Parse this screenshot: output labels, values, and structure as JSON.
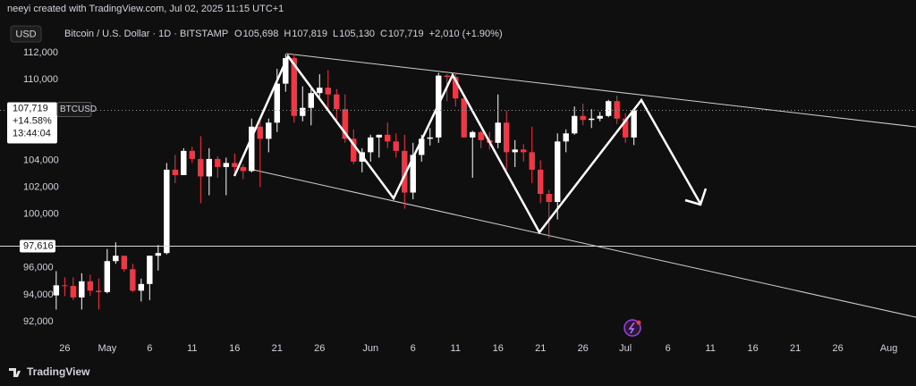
{
  "header": {
    "credit": "neeyi created with TradingView.com, Jul 02, 2025 11:15 UTC+1",
    "currency_button": "USD",
    "footer_brand": "TradingView"
  },
  "chart_data": {
    "type": "candlestick",
    "title": "Bitcoin / U.S. Dollar · 1D · BITSTAMP",
    "ohlc_legend": [
      {
        "key": "O",
        "value": 105698,
        "label": "105,698"
      },
      {
        "key": "H",
        "value": 107819,
        "label": "107,819"
      },
      {
        "key": "L",
        "value": 105130,
        "label": "105,130"
      },
      {
        "key": "C",
        "value": 107719,
        "label": "107,719"
      }
    ],
    "change_label": "+2,010 (+1.90%)",
    "up_color": "#ffffff",
    "down_color": "#f23645",
    "x": [
      115,
      116,
      117,
      118,
      119,
      120,
      121,
      122,
      123,
      124,
      125,
      126,
      127,
      128,
      129,
      130,
      131,
      132,
      133,
      134,
      135,
      136,
      137,
      138,
      139,
      140,
      141,
      142,
      143,
      144,
      145,
      146,
      147,
      148,
      149,
      150,
      151,
      152,
      153,
      154,
      155,
      156,
      157,
      158,
      159,
      160,
      161,
      162,
      163,
      164,
      165,
      166,
      167,
      168,
      169,
      170,
      171,
      172,
      173,
      174,
      175,
      176,
      177,
      178,
      179,
      180,
      181,
      182,
      183
    ],
    "open": [
      93950,
      94700,
      94650,
      93800,
      95000,
      94300,
      94200,
      96500,
      96900,
      95900,
      94300,
      94800,
      96900,
      97100,
      103300,
      102900,
      104700,
      104100,
      102800,
      104100,
      103500,
      103800,
      103500,
      103200,
      106500,
      105600,
      106800,
      109700,
      111600,
      107300,
      107900,
      109000,
      109400,
      108900,
      107800,
      105600,
      103900,
      104600,
      105700,
      105900,
      105400,
      104700,
      101600,
      104400,
      105600,
      105700,
      110300,
      110200,
      108600,
      105700,
      106100,
      105500,
      105300,
      106800,
      104600,
      104800,
      104600,
      103300,
      101500,
      100900,
      105400,
      106000,
      107300,
      107000,
      107100,
      107300,
      108400,
      107100,
      105698
    ],
    "high": [
      95750,
      95300,
      95300,
      95600,
      95500,
      95200,
      97400,
      97900,
      96900,
      96300,
      95200,
      96900,
      97700,
      103800,
      104400,
      104900,
      105000,
      105800,
      104900,
      104300,
      104200,
      104500,
      103700,
      107100,
      107000,
      107100,
      110800,
      111900,
      111900,
      109500,
      109300,
      110400,
      110700,
      109300,
      108900,
      106300,
      104900,
      105900,
      105900,
      106800,
      106000,
      105900,
      105300,
      105900,
      106400,
      110500,
      110400,
      110400,
      108800,
      106200,
      106200,
      106100,
      108900,
      107700,
      105500,
      105200,
      106500,
      104000,
      101800,
      106000,
      106300,
      108000,
      108200,
      107800,
      107600,
      108500,
      108800,
      107500,
      107819
    ],
    "low": [
      92900,
      93900,
      93600,
      92900,
      93900,
      92900,
      94100,
      96300,
      95700,
      94200,
      93500,
      93600,
      95800,
      97000,
      102300,
      102900,
      103800,
      100800,
      101400,
      102700,
      101400,
      103100,
      102600,
      103100,
      102000,
      104600,
      106100,
      109100,
      106800,
      106900,
      106600,
      108600,
      107600,
      106800,
      105300,
      103700,
      103100,
      103900,
      104200,
      104900,
      104200,
      100400,
      101100,
      103900,
      105100,
      105300,
      108400,
      108000,
      105700,
      102700,
      104900,
      104800,
      104900,
      103300,
      103500,
      103900,
      102300,
      100800,
      98200,
      99600,
      104600,
      105900,
      106600,
      106400,
      106900,
      107200,
      106700,
      105300,
      105130
    ],
    "close": [
      94700,
      94650,
      93800,
      95000,
      94300,
      94200,
      96500,
      96900,
      95900,
      94300,
      94800,
      96900,
      97100,
      103300,
      102900,
      104700,
      104100,
      102800,
      104100,
      103500,
      103800,
      103500,
      103200,
      106500,
      105600,
      106800,
      109700,
      111600,
      107300,
      107900,
      109000,
      109400,
      108900,
      107800,
      105600,
      103900,
      104600,
      105700,
      105900,
      105400,
      104700,
      101600,
      104400,
      105600,
      105700,
      110300,
      110200,
      108600,
      105700,
      106100,
      105500,
      105300,
      106800,
      104600,
      104800,
      104600,
      103300,
      101500,
      100900,
      105400,
      106000,
      107300,
      107000,
      107100,
      107300,
      108400,
      107100,
      105700,
      107719
    ],
    "xlim": [
      114.7,
      216.2
    ],
    "xticks": [
      {
        "value": 116,
        "label": "26"
      },
      {
        "value": 121,
        "label": "May"
      },
      {
        "value": 126,
        "label": "6"
      },
      {
        "value": 131,
        "label": "11"
      },
      {
        "value": 136,
        "label": "16"
      },
      {
        "value": 141,
        "label": "21"
      },
      {
        "value": 146,
        "label": "26"
      },
      {
        "value": 152,
        "label": "Jun"
      },
      {
        "value": 157,
        "label": "6"
      },
      {
        "value": 162,
        "label": "11"
      },
      {
        "value": 167,
        "label": "16"
      },
      {
        "value": 172,
        "label": "21"
      },
      {
        "value": 177,
        "label": "26"
      },
      {
        "value": 182,
        "label": "Jul"
      },
      {
        "value": 187,
        "label": "6"
      },
      {
        "value": 192,
        "label": "11"
      },
      {
        "value": 197,
        "label": "16"
      },
      {
        "value": 202,
        "label": "21"
      },
      {
        "value": 207,
        "label": "26"
      },
      {
        "value": 213,
        "label": "Aug"
      }
    ],
    "ylim": [
      91000,
      112600
    ],
    "yticks": [
      {
        "value": 92000,
        "label": "92,000"
      },
      {
        "value": 94000,
        "label": "94,000"
      },
      {
        "value": 96000,
        "label": "96,000"
      },
      {
        "value": 100000,
        "label": "100,000"
      },
      {
        "value": 102000,
        "label": "102,000"
      },
      {
        "value": 104000,
        "label": "104,000"
      },
      {
        "value": 110000,
        "label": "110,000"
      },
      {
        "value": 112000,
        "label": "112,000"
      }
    ],
    "last_price": {
      "value": 107719,
      "label": "107,719"
    },
    "symbol": "BTCUSD",
    "last_change": "+14.58%",
    "countdown": "13:44:04",
    "horizontal_line": {
      "value": 97616,
      "label": "97,616"
    }
  }
}
